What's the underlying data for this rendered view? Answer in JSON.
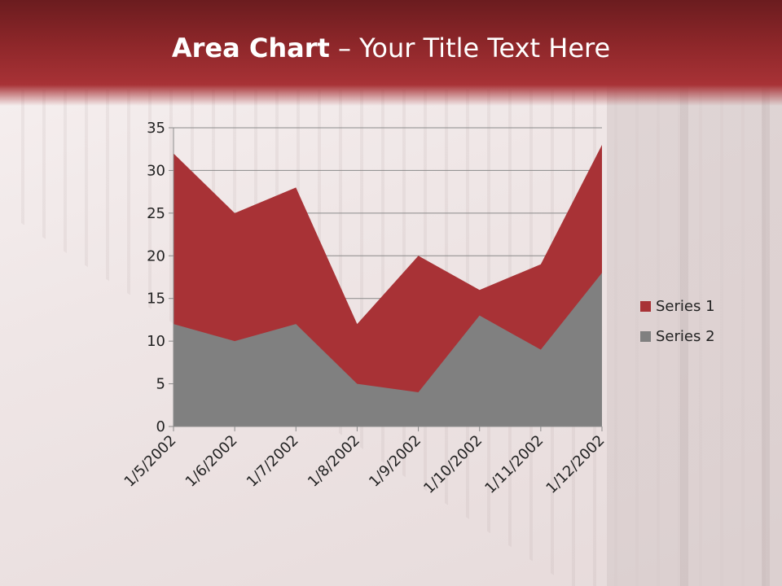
{
  "title": {
    "bold": "Area Chart",
    "rest": " – Your Title Text Here"
  },
  "chart_data": {
    "type": "area",
    "categories": [
      "1/5/2002",
      "1/6/2002",
      "1/7/2002",
      "1/8/2002",
      "1/9/2002",
      "1/10/2002",
      "1/11/2002",
      "1/12/2002"
    ],
    "series": [
      {
        "name": "Series 1",
        "values": [
          32,
          25,
          28,
          12,
          20,
          16,
          19,
          33
        ],
        "color": "#a83236"
      },
      {
        "name": "Series 2",
        "values": [
          12,
          10,
          12,
          5,
          4,
          13,
          9,
          18
        ],
        "color": "#808080"
      }
    ],
    "ylim": [
      0,
      35
    ],
    "yticks": [
      0,
      5,
      10,
      15,
      20,
      25,
      30,
      35
    ],
    "grid": true,
    "legend": "right"
  }
}
